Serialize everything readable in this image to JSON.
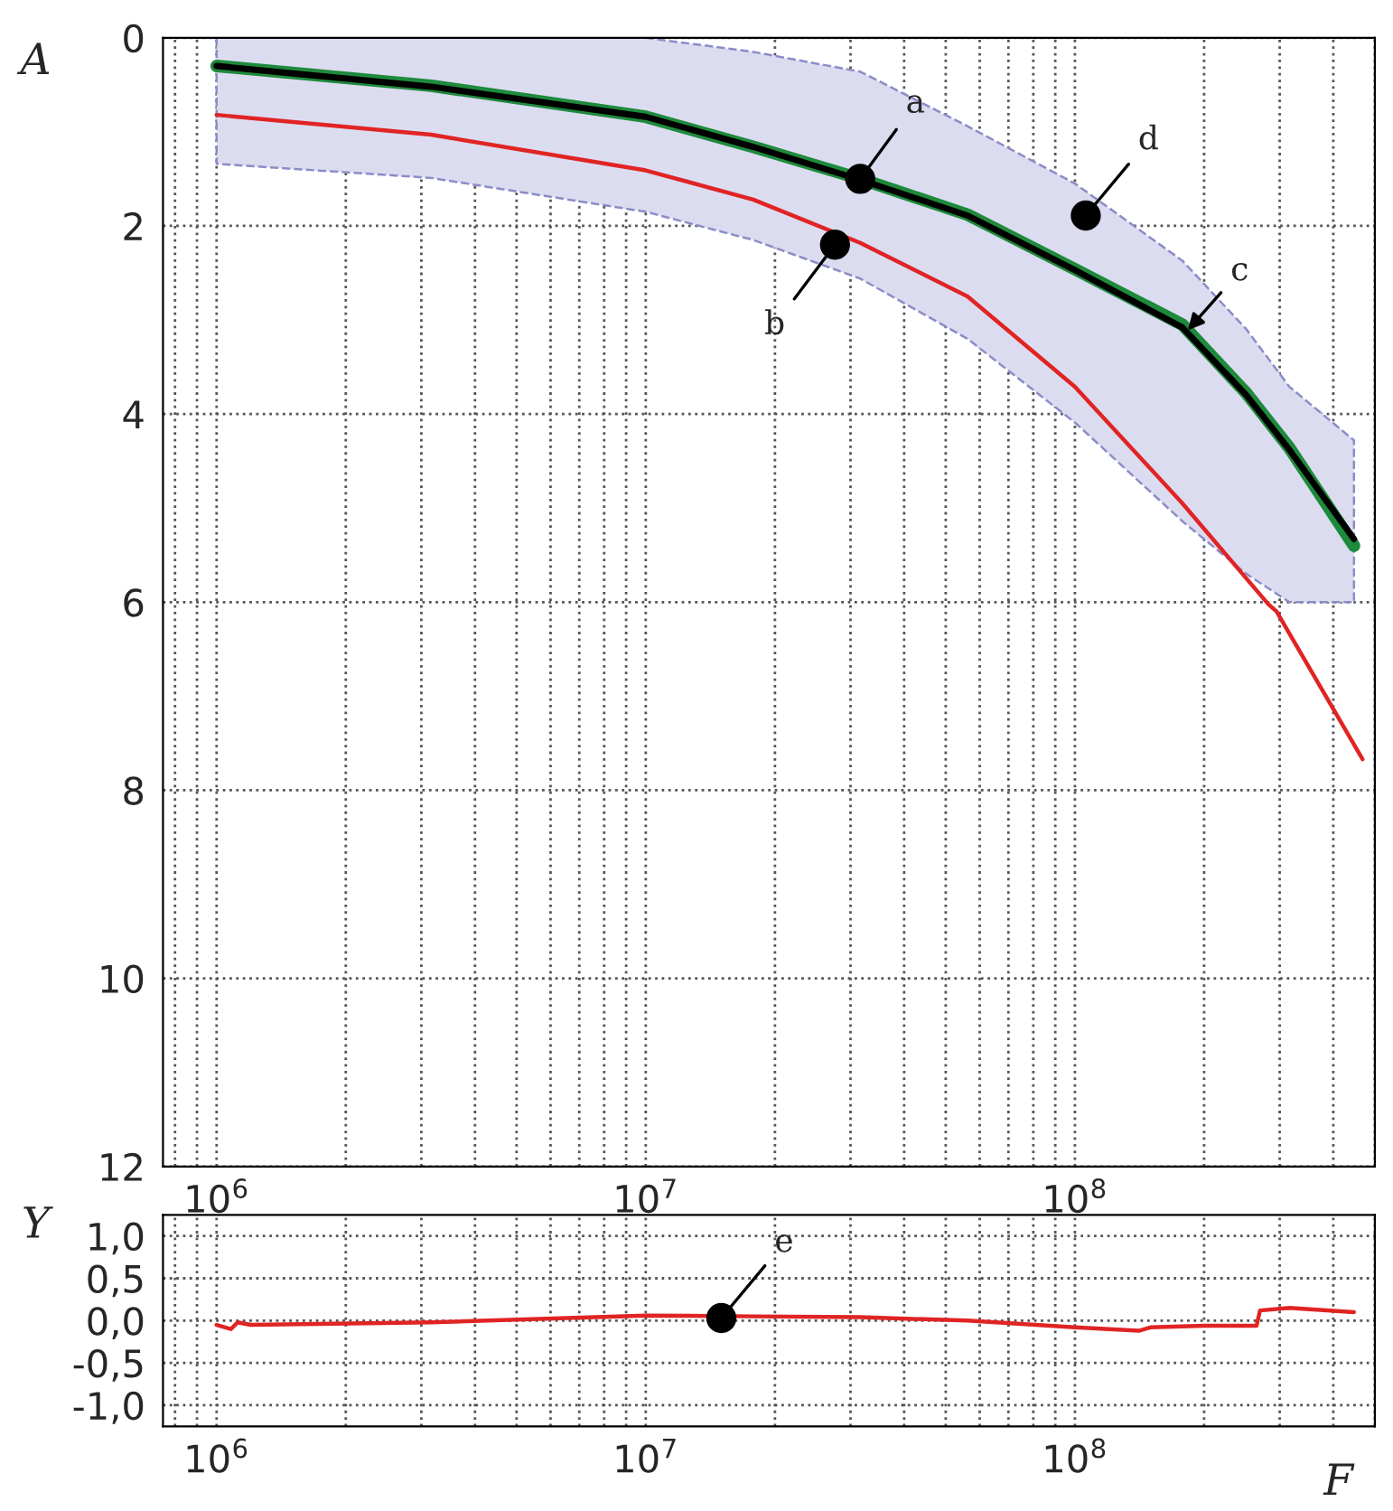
{
  "chart_data": [
    {
      "type": "line",
      "ylabel": "A",
      "xlim": [
        750000,
        500000000
      ],
      "ylim": [
        12,
        0
      ],
      "log": "x",
      "grid": true,
      "xticks": [
        {
          "value": 1000000,
          "label": "10$^{6}$"
        },
        {
          "value": 10000000,
          "label": "10$^{7}$"
        },
        {
          "value": 100000000,
          "label": "10$^{8}$"
        }
      ],
      "yticks": [
        0,
        2,
        4,
        6,
        8,
        10,
        12
      ],
      "series": [
        {
          "color": "#1e8a3c",
          "x": [
            1000000,
            3160000,
            10000000,
            17800000,
            31600000,
            56200000,
            100000000,
            178000000,
            251000000,
            316000000,
            447000000
          ],
          "values": [
            0.3,
            0.51,
            0.84,
            1.16,
            1.5,
            1.88,
            2.46,
            3.05,
            3.78,
            4.36,
            5.4
          ]
        },
        {
          "color": "#000000",
          "x": [
            1000000,
            3160000,
            10000000,
            17800000,
            31600000,
            56200000,
            100000000,
            178000000,
            251000000,
            316000000,
            447000000
          ],
          "values": [
            0.3,
            0.52,
            0.84,
            1.16,
            1.51,
            1.89,
            2.47,
            3.08,
            3.8,
            4.38,
            5.33
          ],
          "lower": [
            1.34,
            1.49,
            1.85,
            2.15,
            2.56,
            3.2,
            4.09,
            5.14,
            5.7,
            6.0,
            6.0
          ],
          "upper": [
            0,
            0,
            0,
            0.15,
            0.36,
            0.94,
            1.55,
            2.37,
            3.1,
            3.71,
            4.28
          ]
        },
        {
          "color": "#e02424",
          "x": [
            1000000,
            3160000,
            10000000,
            17800000,
            31600000,
            56200000,
            100000000,
            178000000,
            282000000,
            295000000,
            468000000
          ],
          "values": [
            0.82,
            1.03,
            1.41,
            1.72,
            2.18,
            2.75,
            3.71,
            4.95,
            6.02,
            6.1,
            7.67
          ]
        }
      ],
      "annotations": [
        {
          "text": "a",
          "x": 31600000,
          "y": 1.5
        },
        {
          "text": "b",
          "x": 27600000,
          "y": 2.2
        },
        {
          "text": "c",
          "x": 180000000,
          "y": 3.15
        },
        {
          "text": "d",
          "x": 106000000,
          "y": 1.89
        }
      ]
    },
    {
      "type": "line",
      "xlabel": "F",
      "ylabel": "Y",
      "xlim": [
        750000,
        500000000
      ],
      "ylim": [
        -1.25,
        1.25
      ],
      "log": "x",
      "grid": true,
      "xticks": [
        {
          "value": 1000000,
          "label": "10$^{6}$"
        },
        {
          "value": 10000000,
          "label": "10$^{7}$"
        },
        {
          "value": 100000000,
          "label": "10$^{8}$"
        }
      ],
      "yticks": [
        {
          "value": 1,
          "label": "1,0"
        },
        {
          "value": 0.5,
          "label": "0,5"
        },
        {
          "value": 0,
          "label": "0,0"
        },
        {
          "value": -0.5,
          "label": "-0,5"
        },
        {
          "value": -1,
          "label": "-1,0"
        }
      ],
      "series": [
        {
          "color": "#e02424",
          "x": [
            1000000,
            1080000,
            1120000,
            1200000,
            3160000,
            10000000,
            17800000,
            31600000,
            56200000,
            100000000,
            141000000,
            150000000,
            200000000,
            265000000,
            270000000,
            316000000,
            447000000
          ],
          "values": [
            -0.05,
            -0.1,
            -0.02,
            -0.05,
            -0.02,
            0.06,
            0.05,
            0.04,
            0.0,
            -0.08,
            -0.12,
            -0.08,
            -0.06,
            -0.06,
            0.12,
            0.15,
            0.1
          ]
        }
      ],
      "annotations": [
        {
          "text": "e",
          "x": 15000000,
          "y": 0.03
        }
      ]
    }
  ]
}
